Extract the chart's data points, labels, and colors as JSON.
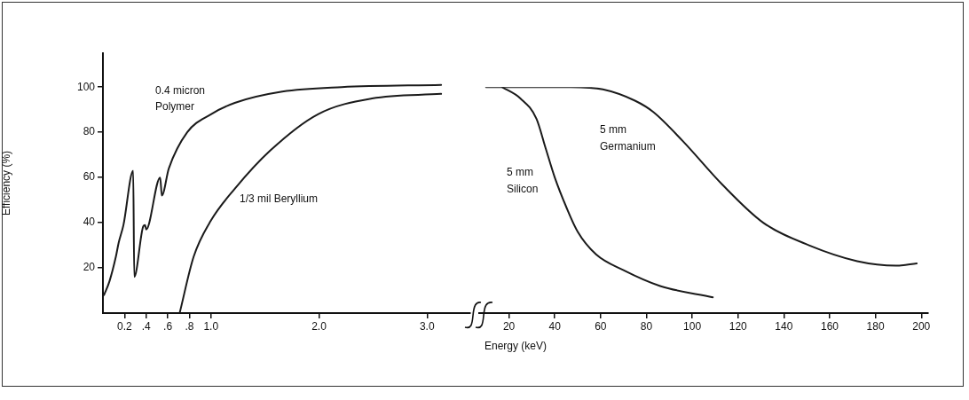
{
  "chart_data": [
    {
      "type": "line",
      "ylabel": "Efficiency (%)",
      "xlabel": "Energy (keV)",
      "xlim": [
        0,
        3.4
      ],
      "xticks": [
        0.2,
        {
          "value": 0.4,
          "label": ".4"
        },
        {
          "value": 0.6,
          "label": ".6"
        },
        {
          "value": 0.8,
          "label": ".8"
        },
        {
          "value": 1,
          "label": "1.0"
        },
        {
          "value": 2,
          "label": "2.0"
        },
        {
          "value": 3,
          "label": "3.0"
        }
      ],
      "ylim": [
        0,
        115
      ],
      "yticks": [
        20,
        40,
        60,
        80,
        100
      ],
      "marker": "none",
      "legend": false,
      "series": [
        {
          "color": "#1a1a1a",
          "x": [
            0.01,
            0.06,
            0.12,
            0.145,
            0.19,
            0.28,
            0.29,
            0.37,
            0.39,
            0.4,
            0.53,
            0.545,
            0.61,
            0.78,
            1.0,
            1.22,
            1.66,
            2.21,
            3.13
          ],
          "values": [
            8,
            14,
            25,
            31,
            39,
            63,
            16,
            38,
            39,
            37,
            60,
            52,
            64,
            80,
            88,
            93,
            98,
            100,
            101
          ]
        },
        {
          "color": "#1a1a1a",
          "x": [
            0.71,
            0.84,
            1.0,
            1.22,
            1.55,
            1.99,
            2.49,
            3.13
          ],
          "values": [
            0,
            25,
            41,
            55,
            72,
            88,
            95,
            97
          ]
        }
      ],
      "annotations": [
        "0.4 micron",
        "Polymer",
        "1/3 mil Beryllium"
      ]
    },
    {
      "type": "line",
      "xlim": [
        7,
        203
      ],
      "xticks": [
        20,
        40,
        60,
        80,
        100,
        120,
        140,
        160,
        180,
        200
      ],
      "ylim": [
        0,
        100
      ],
      "yticks": [
        20,
        40,
        60,
        80,
        100
      ],
      "tick_labels": "x",
      "marker": "none",
      "legend": false,
      "series": [
        {
          "color": "#1a1a1a",
          "x": [
            10,
            47,
            61,
            75,
            83,
            96,
            113,
            131,
            151,
            172,
            189,
            198
          ],
          "values": [
            100,
            100,
            99,
            94,
            89,
            76,
            57,
            40,
            30,
            23,
            21,
            22
          ]
        },
        {
          "color": "#1a1a1a",
          "x": [
            17,
            25,
            32,
            36,
            40,
            45,
            50,
            58,
            70,
            86,
            109
          ],
          "values": [
            100,
            95,
            86,
            73,
            60,
            47,
            36,
            26,
            19,
            12,
            7
          ]
        }
      ],
      "annotations": [
        "5 mm",
        "Germanium",
        "5 mm",
        "Silicon"
      ]
    }
  ]
}
